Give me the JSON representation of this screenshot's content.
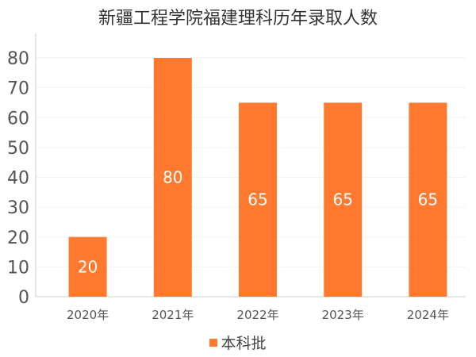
{
  "chart_data": {
    "type": "bar",
    "title": "新疆工程学院福建理科历年录取人数",
    "categories": [
      "2020年",
      "2021年",
      "2022年",
      "2023年",
      "2024年"
    ],
    "series": [
      {
        "name": "本科批",
        "values": [
          20,
          80,
          65,
          65,
          65
        ]
      }
    ],
    "data_labels": [
      "20",
      "80",
      "65",
      "65",
      "65"
    ],
    "ylim": [
      0,
      80
    ],
    "yticks": [
      "0",
      "10",
      "20",
      "30",
      "40",
      "50",
      "60",
      "70",
      "80"
    ],
    "grid": true,
    "legend_position": "bottom",
    "colors": {
      "bar": "#FF7A2F",
      "axis": "#cccccc",
      "grid": "#f2f2f2",
      "text": "#555555"
    }
  }
}
